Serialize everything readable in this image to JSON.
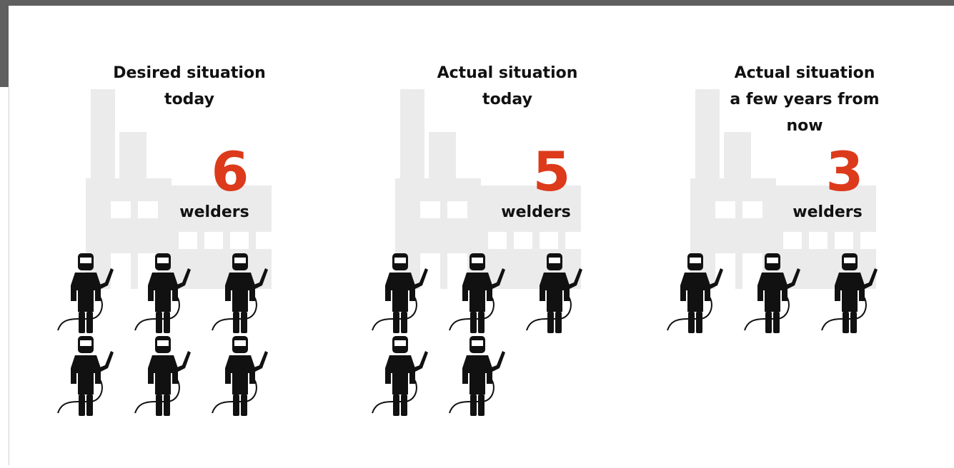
{
  "panels": [
    {
      "title": [
        "Desired situation",
        "today"
      ],
      "count": 6,
      "unit": "welders"
    },
    {
      "title": [
        "Actual situation",
        "today"
      ],
      "count": 5,
      "unit": "welders"
    },
    {
      "title": [
        "Actual situation",
        "a few years from",
        "now"
      ],
      "count": 3,
      "unit": "welders"
    }
  ]
}
